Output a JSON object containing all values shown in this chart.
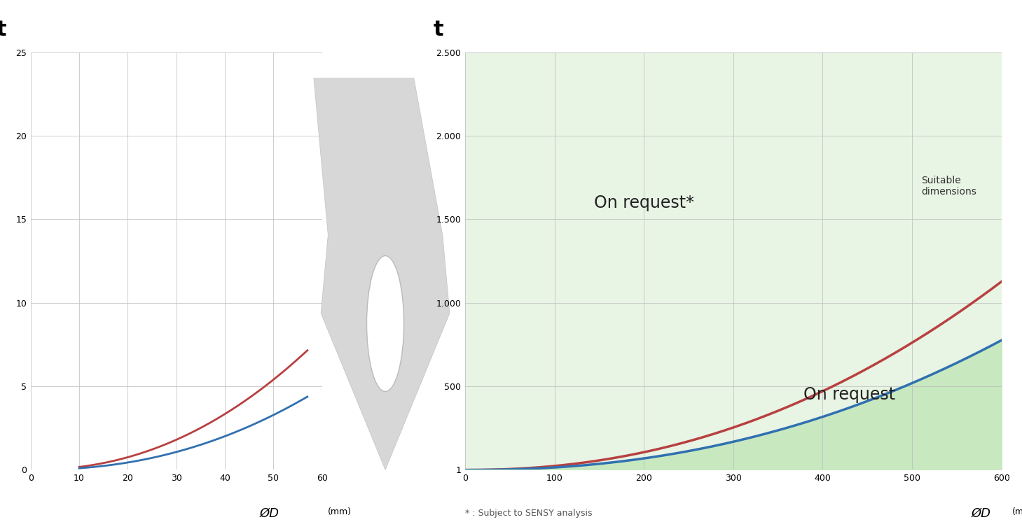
{
  "left_plot": {
    "xlim": [
      0,
      60
    ],
    "ylim": [
      0,
      25
    ],
    "xticks": [
      0,
      10,
      20,
      30,
      40,
      50,
      60
    ],
    "yticks": [
      0,
      5,
      10,
      15,
      20,
      25
    ],
    "xlabel": "ØD",
    "xlabel_mm": "(mm)",
    "ylabel": "t",
    "bg_color": "#ffffff",
    "grid_color": "#bbbbbb",
    "red_color": "#b84040",
    "blue_color": "#3070b0",
    "red_scale": 0.0012,
    "red_exponent": 2.15,
    "blue_scale": 0.0006,
    "blue_exponent": 2.2
  },
  "right_plot": {
    "xlim": [
      0,
      600
    ],
    "ylim": [
      1,
      2500
    ],
    "xticks": [
      0,
      100,
      200,
      300,
      400,
      500,
      600
    ],
    "yticks": [
      1,
      500,
      1000,
      1500,
      2000,
      2500
    ],
    "ytick_labels": [
      "1",
      "500",
      "1.000",
      "1.500",
      "2.000",
      "2.500"
    ],
    "xlabel": "ØD",
    "xlabel_mm": "(mm)",
    "ylabel": "t",
    "bg_color_light": "#e8f4e4",
    "bg_color_dark": "#c8e8c0",
    "grid_color": "#bbbbbb",
    "red_color": "#b84040",
    "blue_color": "#3070b0",
    "text_on_request_star": "On request*",
    "text_on_request": "On request",
    "text_suitable": "Suitable\ndimensions",
    "footnote": "* : Subject to SENSY analysis",
    "red_scale": 0.0012,
    "red_exponent": 2.15,
    "blue_scale": 0.0006,
    "blue_exponent": 2.2
  },
  "arrow_color": "#d0d0d0",
  "arrow_edge_color": "#bbbbbb"
}
